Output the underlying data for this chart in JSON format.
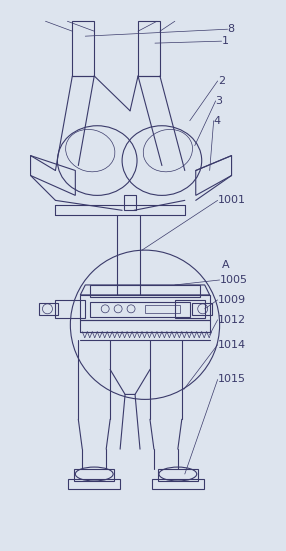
{
  "bg_color": "#dde4ee",
  "line_color": "#3a3a6a",
  "fig_width": 2.86,
  "fig_height": 5.51,
  "dpi": 100,
  "lw": 0.8,
  "tlw": 0.5
}
